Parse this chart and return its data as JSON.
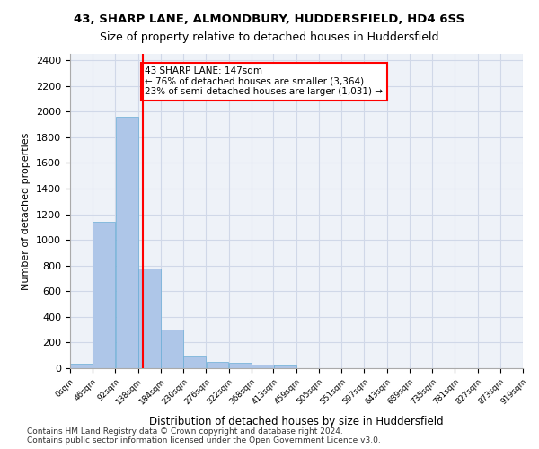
{
  "title_line1": "43, SHARP LANE, ALMONDBURY, HUDDERSFIELD, HD4 6SS",
  "title_line2": "Size of property relative to detached houses in Huddersfield",
  "xlabel": "Distribution of detached houses by size in Huddersfield",
  "ylabel": "Number of detached properties",
  "footnote": "Contains HM Land Registry data © Crown copyright and database right 2024.\nContains public sector information licensed under the Open Government Licence v3.0.",
  "bin_edges": [
    0,
    46,
    92,
    138,
    184,
    230,
    276,
    322,
    368,
    413,
    459,
    505,
    551,
    597,
    643,
    689,
    735,
    781,
    827,
    873,
    919
  ],
  "bar_heights": [
    35,
    1140,
    1960,
    780,
    300,
    100,
    50,
    40,
    30,
    20,
    0,
    0,
    0,
    0,
    0,
    0,
    0,
    0,
    0,
    0
  ],
  "bar_color": "#aec6e8",
  "bar_edge_color": "#6baed6",
  "grid_color": "#d0d8e8",
  "property_size": 147,
  "red_line_x": 147,
  "annotation_text": "43 SHARP LANE: 147sqm\n← 76% of detached houses are smaller (3,364)\n23% of semi-detached houses are larger (1,031) →",
  "annotation_box_color": "white",
  "annotation_box_edge_color": "red",
  "ylim": [
    0,
    2450
  ],
  "yticks": [
    0,
    200,
    400,
    600,
    800,
    1000,
    1200,
    1400,
    1600,
    1800,
    2000,
    2200,
    2400
  ],
  "bg_color": "#eef2f8"
}
